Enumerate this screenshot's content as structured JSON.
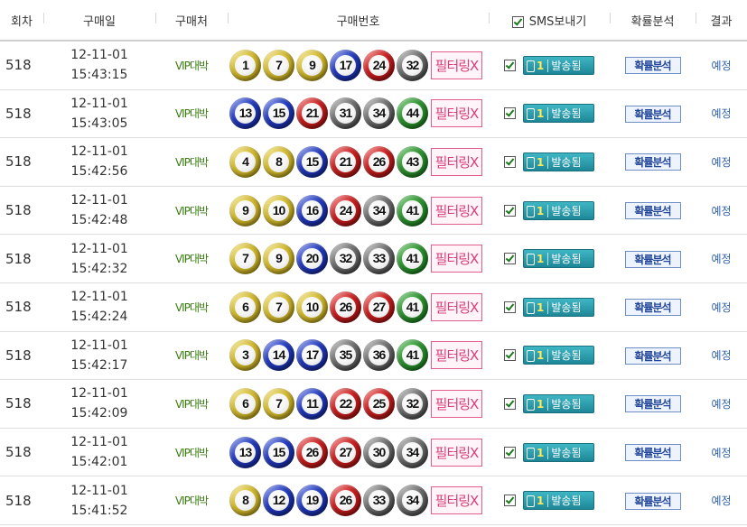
{
  "header": {
    "round": "회차",
    "date": "구매일",
    "store": "구매처",
    "numbers": "구매번호",
    "sms": "SMS보내기",
    "analysis": "확률분석",
    "result": "결과"
  },
  "rows": [
    {
      "round": "518",
      "date": "12-11-01",
      "time": "15:43:15",
      "store": "VIP대박",
      "numbers": [
        {
          "n": "1",
          "c": "y"
        },
        {
          "n": "7",
          "c": "y"
        },
        {
          "n": "9",
          "c": "y"
        },
        {
          "n": "17",
          "c": "b"
        },
        {
          "n": "24",
          "c": "r"
        },
        {
          "n": "32",
          "c": "g"
        }
      ],
      "filter": "필터링X",
      "sms_count": "1",
      "sms_label": "발송됨",
      "analysis": "확률분석",
      "result": "예정"
    },
    {
      "round": "518",
      "date": "12-11-01",
      "time": "15:43:05",
      "store": "VIP대박",
      "numbers": [
        {
          "n": "13",
          "c": "b"
        },
        {
          "n": "15",
          "c": "b"
        },
        {
          "n": "21",
          "c": "r"
        },
        {
          "n": "31",
          "c": "g"
        },
        {
          "n": "34",
          "c": "g"
        },
        {
          "n": "44",
          "c": "n"
        }
      ],
      "filter": "필터링X",
      "sms_count": "1",
      "sms_label": "발송됨",
      "analysis": "확률분석",
      "result": "예정"
    },
    {
      "round": "518",
      "date": "12-11-01",
      "time": "15:42:56",
      "store": "VIP대박",
      "numbers": [
        {
          "n": "4",
          "c": "y"
        },
        {
          "n": "8",
          "c": "y"
        },
        {
          "n": "15",
          "c": "b"
        },
        {
          "n": "21",
          "c": "r"
        },
        {
          "n": "26",
          "c": "r"
        },
        {
          "n": "43",
          "c": "n"
        }
      ],
      "filter": "필터링X",
      "sms_count": "1",
      "sms_label": "발송됨",
      "analysis": "확률분석",
      "result": "예정"
    },
    {
      "round": "518",
      "date": "12-11-01",
      "time": "15:42:48",
      "store": "VIP대박",
      "numbers": [
        {
          "n": "9",
          "c": "y"
        },
        {
          "n": "10",
          "c": "y"
        },
        {
          "n": "16",
          "c": "b"
        },
        {
          "n": "24",
          "c": "r"
        },
        {
          "n": "34",
          "c": "g"
        },
        {
          "n": "41",
          "c": "n"
        }
      ],
      "filter": "필터링X",
      "sms_count": "1",
      "sms_label": "발송됨",
      "analysis": "확률분석",
      "result": "예정"
    },
    {
      "round": "518",
      "date": "12-11-01",
      "time": "15:42:32",
      "store": "VIP대박",
      "numbers": [
        {
          "n": "7",
          "c": "y"
        },
        {
          "n": "9",
          "c": "y"
        },
        {
          "n": "20",
          "c": "b"
        },
        {
          "n": "32",
          "c": "g"
        },
        {
          "n": "33",
          "c": "g"
        },
        {
          "n": "41",
          "c": "n"
        }
      ],
      "filter": "필터링X",
      "sms_count": "1",
      "sms_label": "발송됨",
      "analysis": "확률분석",
      "result": "예정"
    },
    {
      "round": "518",
      "date": "12-11-01",
      "time": "15:42:24",
      "store": "VIP대박",
      "numbers": [
        {
          "n": "6",
          "c": "y"
        },
        {
          "n": "7",
          "c": "y"
        },
        {
          "n": "10",
          "c": "y"
        },
        {
          "n": "26",
          "c": "r"
        },
        {
          "n": "27",
          "c": "r"
        },
        {
          "n": "41",
          "c": "n"
        }
      ],
      "filter": "필터링X",
      "sms_count": "1",
      "sms_label": "발송됨",
      "analysis": "확률분석",
      "result": "예정"
    },
    {
      "round": "518",
      "date": "12-11-01",
      "time": "15:42:17",
      "store": "VIP대박",
      "numbers": [
        {
          "n": "3",
          "c": "y"
        },
        {
          "n": "14",
          "c": "b"
        },
        {
          "n": "17",
          "c": "b"
        },
        {
          "n": "35",
          "c": "g"
        },
        {
          "n": "36",
          "c": "g"
        },
        {
          "n": "41",
          "c": "n"
        }
      ],
      "filter": "필터링X",
      "sms_count": "1",
      "sms_label": "발송됨",
      "analysis": "확률분석",
      "result": "예정"
    },
    {
      "round": "518",
      "date": "12-11-01",
      "time": "15:42:09",
      "store": "VIP대박",
      "numbers": [
        {
          "n": "6",
          "c": "y"
        },
        {
          "n": "7",
          "c": "y"
        },
        {
          "n": "11",
          "c": "b"
        },
        {
          "n": "22",
          "c": "r"
        },
        {
          "n": "25",
          "c": "r"
        },
        {
          "n": "32",
          "c": "g"
        }
      ],
      "filter": "필터링X",
      "sms_count": "1",
      "sms_label": "발송됨",
      "analysis": "확률분석",
      "result": "예정"
    },
    {
      "round": "518",
      "date": "12-11-01",
      "time": "15:42:01",
      "store": "VIP대박",
      "numbers": [
        {
          "n": "13",
          "c": "b"
        },
        {
          "n": "15",
          "c": "b"
        },
        {
          "n": "26",
          "c": "r"
        },
        {
          "n": "27",
          "c": "r"
        },
        {
          "n": "30",
          "c": "g"
        },
        {
          "n": "34",
          "c": "g"
        }
      ],
      "filter": "필터링X",
      "sms_count": "1",
      "sms_label": "발송됨",
      "analysis": "확률분석",
      "result": "예정"
    },
    {
      "round": "518",
      "date": "12-11-01",
      "time": "15:41:52",
      "store": "VIP대박",
      "numbers": [
        {
          "n": "8",
          "c": "y"
        },
        {
          "n": "12",
          "c": "b"
        },
        {
          "n": "19",
          "c": "b"
        },
        {
          "n": "26",
          "c": "r"
        },
        {
          "n": "33",
          "c": "g"
        },
        {
          "n": "34",
          "c": "g"
        }
      ],
      "filter": "필터링X",
      "sms_count": "1",
      "sms_label": "발송됨",
      "analysis": "확률분석",
      "result": "예정"
    }
  ]
}
